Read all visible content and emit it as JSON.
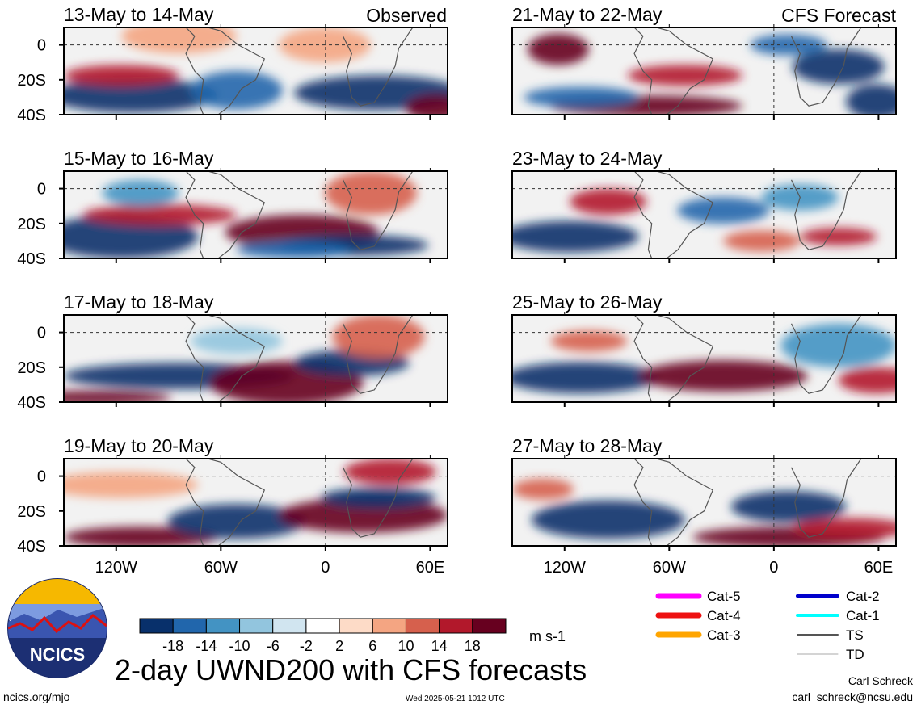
{
  "header": {
    "left_label": "Observed",
    "right_label": "CFS Forecast"
  },
  "panels": [
    {
      "title": "13-May to 14-May",
      "column": "left"
    },
    {
      "title": "15-May to 16-May",
      "column": "left"
    },
    {
      "title": "17-May to 18-May",
      "column": "left"
    },
    {
      "title": "19-May to 20-May",
      "column": "left"
    },
    {
      "title": "21-May to 22-May",
      "column": "right"
    },
    {
      "title": "23-May to 24-May",
      "column": "right"
    },
    {
      "title": "25-May to 26-May",
      "column": "right"
    },
    {
      "title": "27-May to 28-May",
      "column": "right"
    }
  ],
  "axes": {
    "y_ticks": [
      "0",
      "20S",
      "40S"
    ],
    "x_ticks": [
      "120W",
      "60W",
      "0",
      "60E"
    ]
  },
  "colorbar": {
    "labels": [
      "-18",
      "-14",
      "-10",
      "-6",
      "-2",
      "2",
      "6",
      "10",
      "14",
      "18"
    ],
    "colors": [
      "#08306b",
      "#2166ac",
      "#4393c3",
      "#92c5de",
      "#d1e5f0",
      "#ffffff",
      "#fddbc7",
      "#f4a582",
      "#d6604d",
      "#b2182b",
      "#67001f"
    ],
    "units": "m s-1"
  },
  "storm_legend": [
    {
      "label": "Cat-5",
      "color": "#ff00ff"
    },
    {
      "label": "Cat-4",
      "color": "#ee1111"
    },
    {
      "label": "Cat-3",
      "color": "#ffa500"
    },
    {
      "label": "Cat-2",
      "color": "#0000cc"
    },
    {
      "label": "Cat-1",
      "color": "#00ffff"
    },
    {
      "label": "TS",
      "color": "#555555"
    },
    {
      "label": "TD",
      "color": "#aaaaaa"
    }
  ],
  "logo": {
    "text": "NCICS"
  },
  "footer": {
    "main_title": "2-day UWND200 with CFS forecasts",
    "site": "ncics.org/mjo",
    "timestamp": "Wed 2025-05-21 1012 UTC",
    "author": "Carl Schreck",
    "email": "carl_schreck@ncsu.edu"
  }
}
